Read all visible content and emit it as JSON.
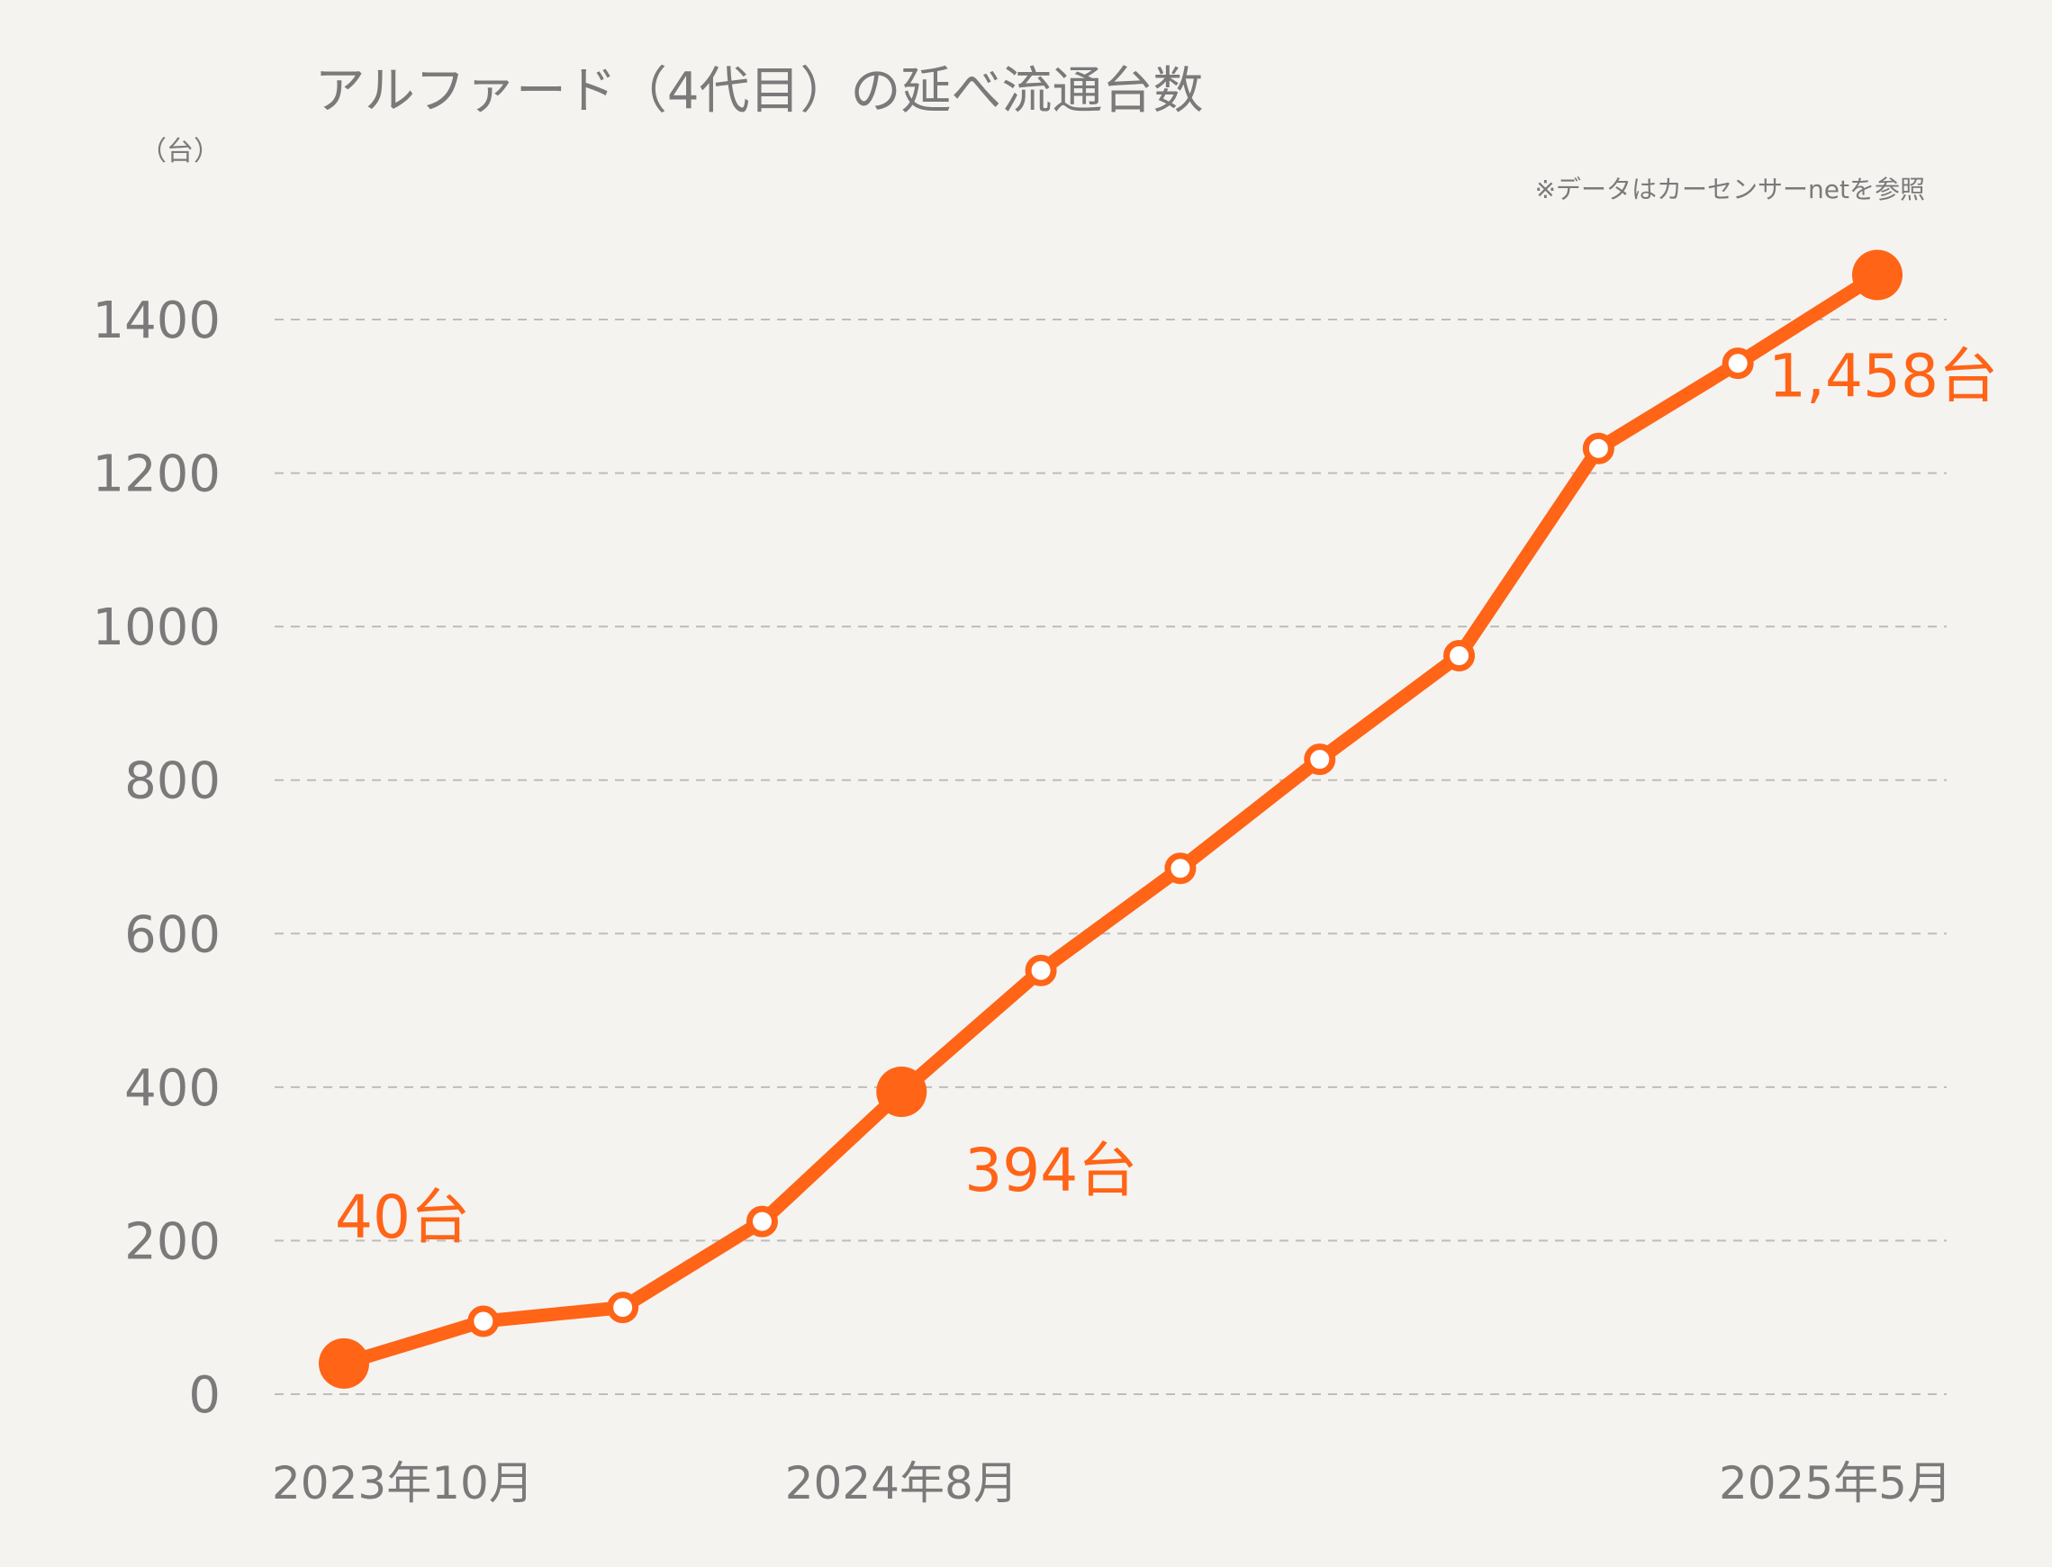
{
  "chart_data": {
    "type": "line",
    "title": "アルファード（4代目）の延べ流通台数",
    "y_unit_label": "（台）",
    "source_note": "※データはカーセンサーnetを参照",
    "ylim": [
      0,
      1400
    ],
    "yticks": [
      "0",
      "200",
      "400",
      "600",
      "800",
      "1000",
      "1200",
      "1400"
    ],
    "xtick_labels": [
      {
        "index": 0,
        "label": "2023年10月"
      },
      {
        "index": 4,
        "label": "2024年8月"
      },
      {
        "index": 11,
        "label": "2025年5月"
      }
    ],
    "series": [
      {
        "color": "#ff6417",
        "values": [
          40,
          95,
          113,
          225,
          394,
          552,
          685,
          827,
          962,
          1232,
          1343,
          1458
        ]
      }
    ],
    "highlighted_points": [
      {
        "index": 0,
        "label": "40台"
      },
      {
        "index": 4,
        "label": "394台"
      },
      {
        "index": 11,
        "label": "1,458台"
      }
    ],
    "grid": true,
    "legend": "none"
  }
}
